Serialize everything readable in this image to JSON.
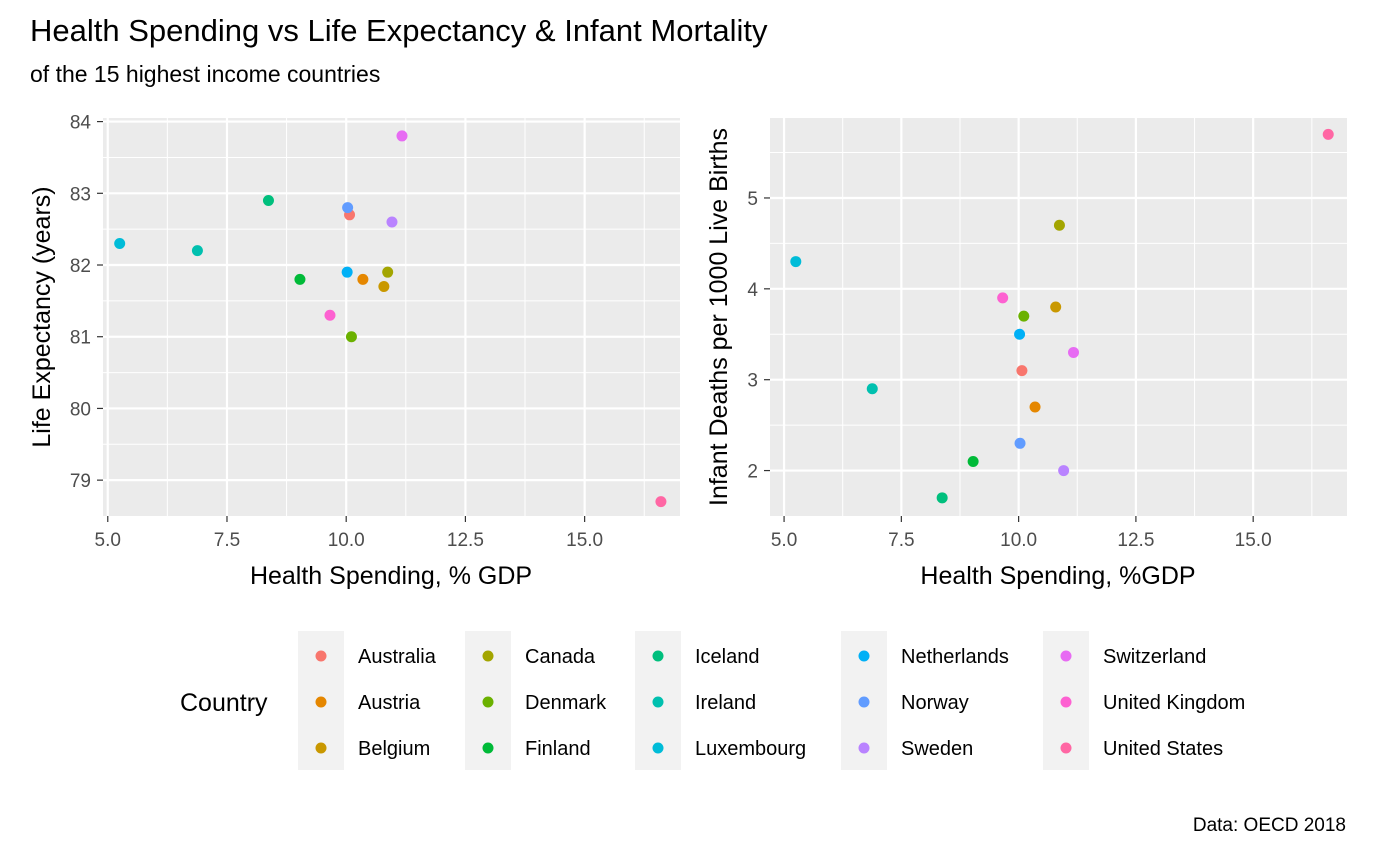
{
  "title": "Health Spending vs Life Expectancy & Infant Mortality",
  "subtitle": "of the 15 highest income countries",
  "caption": "Data: OECD 2018",
  "legend": {
    "title": "Country",
    "placement": "bottom",
    "items": [
      {
        "label": "Australia",
        "color": "#F8766D"
      },
      {
        "label": "Austria",
        "color": "#E58700"
      },
      {
        "label": "Belgium",
        "color": "#C99800"
      },
      {
        "label": "Canada",
        "color": "#A3A500"
      },
      {
        "label": "Denmark",
        "color": "#6BB100"
      },
      {
        "label": "Finland",
        "color": "#00BA38"
      },
      {
        "label": "Iceland",
        "color": "#00BF7D"
      },
      {
        "label": "Ireland",
        "color": "#00C0AF"
      },
      {
        "label": "Luxembourg",
        "color": "#00BCD8"
      },
      {
        "label": "Netherlands",
        "color": "#00B0F6"
      },
      {
        "label": "Norway",
        "color": "#619CFF"
      },
      {
        "label": "Sweden",
        "color": "#B983FF"
      },
      {
        "label": "Switzerland",
        "color": "#E76BF3"
      },
      {
        "label": "United Kingdom",
        "color": "#FD61D1"
      },
      {
        "label": "United States",
        "color": "#FF67A4"
      }
    ]
  },
  "chart_data": [
    {
      "type": "scatter",
      "xlabel": "Health Spending, % GDP",
      "ylabel": "Life Expectancy (years)",
      "xlim": [
        4.9,
        17.0
      ],
      "ylim": [
        78.5,
        84.05
      ],
      "xticks": [
        "5.0",
        "7.5",
        "10.0",
        "12.5",
        "15.0"
      ],
      "xtick_values": [
        5.0,
        7.5,
        10.0,
        12.5,
        15.0
      ],
      "yticks": [
        "79",
        "80",
        "81",
        "82",
        "83",
        "84"
      ],
      "ytick_values": [
        79,
        80,
        81,
        82,
        83,
        84
      ],
      "grid": true,
      "points": [
        {
          "country": "Australia",
          "x": 10.07,
          "y": 82.7
        },
        {
          "country": "Austria",
          "x": 10.35,
          "y": 81.8
        },
        {
          "country": "Belgium",
          "x": 10.79,
          "y": 81.7
        },
        {
          "country": "Canada",
          "x": 10.87,
          "y": 81.9
        },
        {
          "country": "Denmark",
          "x": 10.11,
          "y": 81.0
        },
        {
          "country": "Finland",
          "x": 9.03,
          "y": 81.8
        },
        {
          "country": "Iceland",
          "x": 8.37,
          "y": 82.9
        },
        {
          "country": "Ireland",
          "x": 6.88,
          "y": 82.2
        },
        {
          "country": "Luxembourg",
          "x": 5.25,
          "y": 82.3
        },
        {
          "country": "Netherlands",
          "x": 10.02,
          "y": 81.9
        },
        {
          "country": "Norway",
          "x": 10.03,
          "y": 82.8
        },
        {
          "country": "Sweden",
          "x": 10.96,
          "y": 82.6
        },
        {
          "country": "Switzerland",
          "x": 11.17,
          "y": 83.8
        },
        {
          "country": "United Kingdom",
          "x": 9.66,
          "y": 81.3
        },
        {
          "country": "United States",
          "x": 16.6,
          "y": 78.7
        }
      ]
    },
    {
      "type": "scatter",
      "xlabel": "Health Spending, %GDP",
      "ylabel": "Infant Deaths per 1000 Live Births",
      "xlim": [
        4.7,
        17.0
      ],
      "ylim": [
        1.5,
        5.88
      ],
      "xticks": [
        "5.0",
        "7.5",
        "10.0",
        "12.5",
        "15.0"
      ],
      "xtick_values": [
        5.0,
        7.5,
        10.0,
        12.5,
        15.0
      ],
      "yticks": [
        "2",
        "3",
        "4",
        "5"
      ],
      "ytick_values": [
        2,
        3,
        4,
        5
      ],
      "grid": true,
      "points": [
        {
          "country": "Australia",
          "x": 10.07,
          "y": 3.1
        },
        {
          "country": "Austria",
          "x": 10.35,
          "y": 2.7
        },
        {
          "country": "Belgium",
          "x": 10.79,
          "y": 3.8
        },
        {
          "country": "Canada",
          "x": 10.87,
          "y": 4.7
        },
        {
          "country": "Denmark",
          "x": 10.11,
          "y": 3.7
        },
        {
          "country": "Finland",
          "x": 9.03,
          "y": 2.1
        },
        {
          "country": "Iceland",
          "x": 8.37,
          "y": 1.7
        },
        {
          "country": "Ireland",
          "x": 6.88,
          "y": 2.9
        },
        {
          "country": "Luxembourg",
          "x": 5.25,
          "y": 4.3
        },
        {
          "country": "Netherlands",
          "x": 10.02,
          "y": 3.5
        },
        {
          "country": "Norway",
          "x": 10.03,
          "y": 2.3
        },
        {
          "country": "Sweden",
          "x": 10.96,
          "y": 2.0
        },
        {
          "country": "Switzerland",
          "x": 11.17,
          "y": 3.3
        },
        {
          "country": "United Kingdom",
          "x": 9.66,
          "y": 3.9
        },
        {
          "country": "United States",
          "x": 16.6,
          "y": 5.7
        }
      ]
    }
  ]
}
